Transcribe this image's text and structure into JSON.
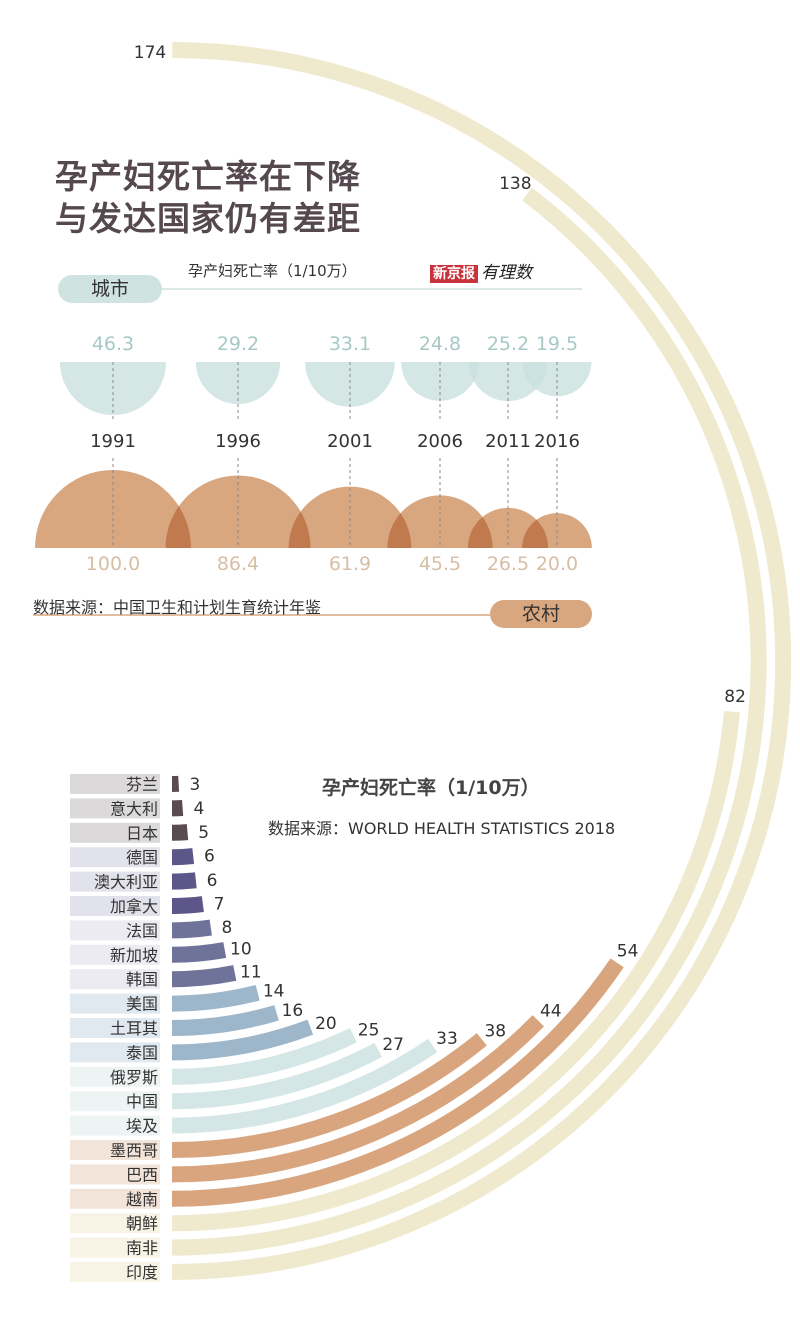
{
  "title": {
    "line1": "孕产妇死亡率在下降",
    "line2": "与发达国家仍有差距"
  },
  "logo": {
    "newspaper": "新京报",
    "column": "有理数"
  },
  "china_chart": {
    "type": "bubble",
    "subtitle": "孕产妇死亡率（1/10万）",
    "urban_label": "城市",
    "rural_label": "农村",
    "source": "数据来源：中国卫生和计划生育统计年鉴",
    "years": [
      "1991",
      "1996",
      "2001",
      "2006",
      "2011",
      "2016"
    ],
    "urban": [
      46.3,
      29.2,
      33.1,
      24.8,
      25.2,
      19.5
    ],
    "rural": [
      100.0,
      86.4,
      61.9,
      45.5,
      26.5,
      20.0
    ],
    "urban_labels": [
      "46.3",
      "29.2",
      "33.1",
      "24.8",
      "25.2",
      "19.5"
    ],
    "rural_labels": [
      "100.0",
      "86.4",
      "61.9",
      "45.5",
      "26.5",
      "20.0"
    ],
    "colors": {
      "urban": "#c9e1df",
      "rural": "#d9a77f",
      "overlap": "#c07a4e"
    }
  },
  "chart_data": {
    "type": "bar",
    "layout": "radial",
    "title": "孕产妇死亡率（1/10万）",
    "source": "数据来源：WORLD HEALTH STATISTICS 2018",
    "categories": [
      "芬兰",
      "意大利",
      "日本",
      "德国",
      "澳大利亚",
      "加拿大",
      "法国",
      "新加坡",
      "韩国",
      "美国",
      "土耳其",
      "泰国",
      "俄罗斯",
      "中国",
      "埃及",
      "墨西哥",
      "巴西",
      "越南",
      "朝鲜",
      "南非",
      "印度"
    ],
    "values": [
      3,
      4,
      5,
      6,
      6,
      7,
      8,
      10,
      11,
      14,
      16,
      20,
      25,
      27,
      33,
      38,
      44,
      54,
      82,
      138,
      174
    ],
    "max": 174,
    "groups": [
      {
        "count": 3,
        "bar": "#5a4a52",
        "label_bg": "#dcd9db"
      },
      {
        "count": 3,
        "bar": "#5d5789",
        "label_bg": "#e2e2ec"
      },
      {
        "count": 3,
        "bar": "#6f7299",
        "label_bg": "#ebebf1"
      },
      {
        "count": 3,
        "bar": "#9db6ca",
        "label_bg": "#e1e9f0"
      },
      {
        "count": 3,
        "bar": "#d5e6e6",
        "label_bg": "#eef4f4"
      },
      {
        "count": 3,
        "bar": "#d8a57e",
        "label_bg": "#f3e4da"
      },
      {
        "count": 3,
        "bar": "#efe9cd",
        "label_bg": "#f7f4e6"
      }
    ]
  }
}
